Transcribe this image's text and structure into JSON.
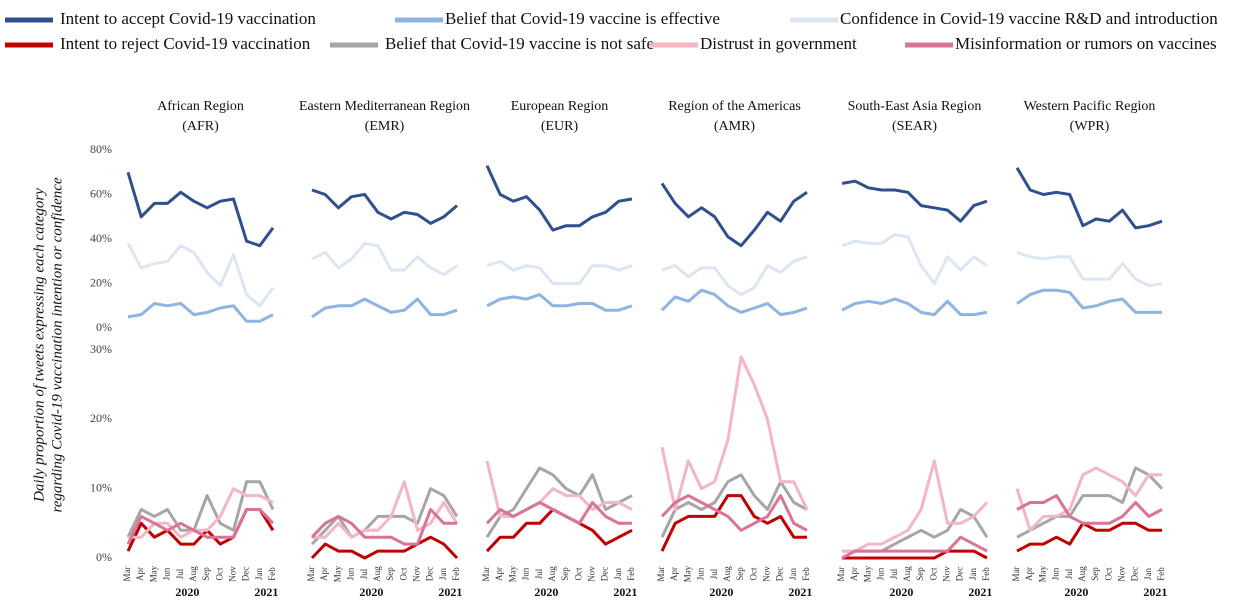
{
  "chart_data": [
    {
      "type": "line",
      "title": "African Region",
      "subtitle": "(AFR)",
      "ylabel": [
        "Daily proportion of tweets expressing each category",
        "regarding Covid-19 vaccination intention or confidence"
      ],
      "ylim": [
        0,
        80
      ],
      "yticks": [
        {
          "value": 0,
          "label": "0%"
        },
        {
          "value": 20,
          "label": "20%"
        },
        {
          "value": 40,
          "label": "40%"
        },
        {
          "value": 60,
          "label": "60%"
        },
        {
          "value": 80,
          "label": "80%"
        }
      ],
      "series": [
        {
          "name": "Intent to accept Covid-19 vaccination",
          "color": "#2f4f8f",
          "values": [
            70,
            50,
            56,
            56,
            61,
            57,
            54,
            57,
            58,
            39,
            37,
            45
          ]
        },
        {
          "name": "Belief that Covid-19 vaccine is effective",
          "color": "#8db4e2",
          "values": [
            5,
            6,
            11,
            10,
            11,
            6,
            7,
            9,
            10,
            3,
            3,
            6
          ]
        },
        {
          "name": "Confidence in Covid-19 vaccine R&D and introduction",
          "color": "#dce6f2",
          "values": [
            38,
            27,
            29,
            30,
            37,
            34,
            25,
            19,
            33,
            15,
            10,
            18
          ]
        }
      ]
    },
    {
      "type": "line",
      "ylim": [
        0,
        30
      ],
      "yticks": [
        {
          "value": 0,
          "label": "0%"
        },
        {
          "value": 10,
          "label": "10%"
        },
        {
          "value": 20,
          "label": "20%"
        },
        {
          "value": 30,
          "label": "30%"
        }
      ],
      "categories": [
        "Mar",
        "Apr",
        "May",
        "Jun",
        "Jul",
        "Aug",
        "Sep",
        "Oct",
        "Nov",
        "Dec",
        "Jan",
        "Feb"
      ],
      "x_group_labels": [
        "2020",
        "2021"
      ],
      "series": [
        {
          "name": "Intent to reject Covid-19 vaccination",
          "color": "#c00000",
          "values": [
            1,
            5,
            3,
            4,
            2,
            2,
            4,
            2,
            3,
            7,
            7,
            4
          ]
        },
        {
          "name": "Belief that Covid-19 vaccine is not safe",
          "color": "#a6a6a6",
          "values": [
            3,
            7,
            6,
            7,
            4,
            4,
            9,
            5,
            4,
            11,
            11,
            7
          ]
        },
        {
          "name": "Distrust in government",
          "color": "#f4b6c2",
          "values": [
            3,
            3,
            5,
            5,
            3,
            4,
            4,
            6,
            10,
            9,
            9,
            8
          ]
        },
        {
          "name": "Misinformation or rumors on vaccines",
          "color": "#d9739a",
          "values": [
            2,
            6,
            5,
            4,
            5,
            4,
            3,
            3,
            3,
            7,
            7,
            5
          ]
        }
      ]
    },
    {
      "type": "line",
      "title": "Eastern Mediterranean Region",
      "subtitle": "(EMR)",
      "ylim": [
        0,
        80
      ],
      "series": [
        {
          "name": "Intent to accept Covid-19 vaccination",
          "color": "#2f4f8f",
          "values": [
            62,
            60,
            54,
            59,
            60,
            52,
            49,
            52,
            51,
            47,
            50,
            55
          ]
        },
        {
          "name": "Belief that Covid-19 vaccine is effective",
          "color": "#8db4e2",
          "values": [
            5,
            9,
            10,
            10,
            13,
            10,
            7,
            8,
            13,
            6,
            6,
            8
          ]
        },
        {
          "name": "Confidence in Covid-19 vaccine R&D and introduction",
          "color": "#dce6f2",
          "values": [
            31,
            34,
            27,
            31,
            38,
            37,
            26,
            26,
            32,
            27,
            24,
            28
          ]
        }
      ]
    },
    {
      "type": "line",
      "ylim": [
        0,
        30
      ],
      "categories": [
        "Mar",
        "Apr",
        "May",
        "Jun",
        "Jul",
        "Aug",
        "Sep",
        "Oct",
        "Nov",
        "Dec",
        "Jan",
        "Feb"
      ],
      "x_group_labels": [
        "2020",
        "2021"
      ],
      "series": [
        {
          "name": "Intent to reject Covid-19 vaccination",
          "color": "#c00000",
          "values": [
            0,
            2,
            1,
            1,
            0,
            1,
            1,
            1,
            2,
            3,
            2,
            0
          ]
        },
        {
          "name": "Belief that Covid-19 vaccine is not safe",
          "color": "#a6a6a6",
          "values": [
            2,
            4,
            6,
            3,
            4,
            6,
            6,
            6,
            5,
            10,
            9,
            6
          ]
        },
        {
          "name": "Distrust in government",
          "color": "#f4b6c2",
          "values": [
            3,
            3,
            5,
            3,
            4,
            4,
            6,
            11,
            4,
            5,
            8,
            5
          ]
        },
        {
          "name": "Misinformation or rumors on vaccines",
          "color": "#d9739a",
          "values": [
            3,
            5,
            6,
            5,
            3,
            3,
            3,
            2,
            2,
            7,
            5,
            5
          ]
        }
      ]
    },
    {
      "type": "line",
      "title": "European Region",
      "subtitle": "(EUR)",
      "ylim": [
        0,
        80
      ],
      "series": [
        {
          "name": "Intent to accept Covid-19 vaccination",
          "color": "#2f4f8f",
          "values": [
            73,
            60,
            57,
            59,
            53,
            44,
            46,
            46,
            50,
            52,
            57,
            58
          ]
        },
        {
          "name": "Belief that Covid-19 vaccine is effective",
          "color": "#8db4e2",
          "values": [
            10,
            13,
            14,
            13,
            15,
            10,
            10,
            11,
            11,
            8,
            8,
            10
          ]
        },
        {
          "name": "Confidence in Covid-19 vaccine R&D and introduction",
          "color": "#dce6f2",
          "values": [
            28,
            30,
            26,
            28,
            27,
            20,
            20,
            20,
            28,
            28,
            26,
            28
          ]
        }
      ]
    },
    {
      "type": "line",
      "ylim": [
        0,
        30
      ],
      "categories": [
        "Mar",
        "Apr",
        "May",
        "Jun",
        "Jul",
        "Aug",
        "Sep",
        "Oct",
        "Nov",
        "Dec",
        "Jan",
        "Feb"
      ],
      "x_group_labels": [
        "2020",
        "2021"
      ],
      "series": [
        {
          "name": "Intent to reject Covid-19 vaccination",
          "color": "#c00000",
          "values": [
            1,
            3,
            3,
            5,
            5,
            7,
            6,
            5,
            4,
            2,
            3,
            4
          ]
        },
        {
          "name": "Belief that Covid-19 vaccine is not safe",
          "color": "#a6a6a6",
          "values": [
            3,
            6,
            7,
            10,
            13,
            12,
            10,
            9,
            12,
            7,
            8,
            9
          ]
        },
        {
          "name": "Distrust in government",
          "color": "#f4b6c2",
          "values": [
            14,
            6,
            6,
            7,
            8,
            10,
            9,
            9,
            7,
            8,
            8,
            7
          ]
        },
        {
          "name": "Misinformation or rumors on vaccines",
          "color": "#d9739a",
          "values": [
            5,
            7,
            6,
            7,
            8,
            7,
            6,
            5,
            8,
            6,
            5,
            5
          ]
        }
      ]
    },
    {
      "type": "line",
      "title": "Region of the Americas",
      "subtitle": "(AMR)",
      "ylim": [
        0,
        80
      ],
      "series": [
        {
          "name": "Intent to accept Covid-19 vaccination",
          "color": "#2f4f8f",
          "values": [
            65,
            56,
            50,
            54,
            50,
            41,
            37,
            44,
            52,
            48,
            57,
            61
          ]
        },
        {
          "name": "Belief that Covid-19 vaccine is effective",
          "color": "#8db4e2",
          "values": [
            8,
            14,
            12,
            17,
            15,
            10,
            7,
            9,
            11,
            6,
            7,
            9
          ]
        },
        {
          "name": "Confidence in Covid-19 vaccine R&D and introduction",
          "color": "#dce6f2",
          "values": [
            26,
            28,
            23,
            27,
            27,
            19,
            15,
            18,
            28,
            25,
            30,
            32
          ]
        }
      ]
    },
    {
      "type": "line",
      "ylim": [
        0,
        30
      ],
      "categories": [
        "Mar",
        "Apr",
        "May",
        "Jun",
        "Jul",
        "Aug",
        "Sep",
        "Oct",
        "Nov",
        "Dec",
        "Jan",
        "Feb"
      ],
      "x_group_labels": [
        "2020",
        "2021"
      ],
      "series": [
        {
          "name": "Intent to reject Covid-19 vaccination",
          "color": "#c00000",
          "values": [
            1,
            5,
            6,
            6,
            6,
            9,
            9,
            6,
            5,
            6,
            3,
            3
          ]
        },
        {
          "name": "Belief that Covid-19 vaccine is not safe",
          "color": "#a6a6a6",
          "values": [
            3,
            7,
            8,
            7,
            8,
            11,
            12,
            9,
            7,
            11,
            8,
            7
          ]
        },
        {
          "name": "Distrust in government",
          "color": "#f4b6c2",
          "values": [
            16,
            7,
            14,
            10,
            11,
            17,
            29,
            25,
            20,
            11,
            11,
            7
          ]
        },
        {
          "name": "Misinformation or rumors on vaccines",
          "color": "#d9739a",
          "values": [
            6,
            8,
            9,
            8,
            7,
            6,
            4,
            5,
            6,
            9,
            5,
            4
          ]
        }
      ]
    },
    {
      "type": "line",
      "title": "South-East Asia Region",
      "subtitle": "(SEAR)",
      "ylim": [
        0,
        80
      ],
      "series": [
        {
          "name": "Intent to accept Covid-19 vaccination",
          "color": "#2f4f8f",
          "values": [
            65,
            66,
            63,
            62,
            62,
            61,
            55,
            54,
            53,
            48,
            55,
            57
          ]
        },
        {
          "name": "Belief that Covid-19 vaccine is effective",
          "color": "#8db4e2",
          "values": [
            8,
            11,
            12,
            11,
            13,
            11,
            7,
            6,
            12,
            6,
            6,
            7
          ]
        },
        {
          "name": "Confidence in Covid-19 vaccine R&D and introduction",
          "color": "#dce6f2",
          "values": [
            37,
            39,
            38,
            38,
            42,
            41,
            28,
            20,
            32,
            26,
            32,
            28
          ]
        }
      ]
    },
    {
      "type": "line",
      "ylim": [
        0,
        30
      ],
      "categories": [
        "Mar",
        "Apr",
        "May",
        "Jun",
        "Jul",
        "Aug",
        "Sep",
        "Oct",
        "Nov",
        "Dec",
        "Jan",
        "Feb"
      ],
      "x_group_labels": [
        "2020",
        "2021"
      ],
      "series": [
        {
          "name": "Intent to reject Covid-19 vaccination",
          "color": "#c00000",
          "values": [
            0,
            0,
            0,
            0,
            0,
            0,
            0,
            0,
            1,
            1,
            1,
            0
          ]
        },
        {
          "name": "Belief that Covid-19 vaccine is not safe",
          "color": "#a6a6a6",
          "values": [
            1,
            1,
            1,
            1,
            2,
            3,
            4,
            3,
            4,
            7,
            6,
            3
          ]
        },
        {
          "name": "Distrust in government",
          "color": "#f4b6c2",
          "values": [
            1,
            1,
            2,
            2,
            3,
            4,
            7,
            14,
            5,
            5,
            6,
            8
          ]
        },
        {
          "name": "Misinformation or rumors on vaccines",
          "color": "#d9739a",
          "values": [
            0,
            1,
            1,
            1,
            1,
            1,
            1,
            1,
            1,
            3,
            2,
            1
          ]
        }
      ]
    },
    {
      "type": "line",
      "title": "Western Pacific Region",
      "subtitle": "(WPR)",
      "ylim": [
        0,
        80
      ],
      "series": [
        {
          "name": "Intent to accept Covid-19 vaccination",
          "color": "#2f4f8f",
          "values": [
            72,
            62,
            60,
            61,
            60,
            46,
            49,
            48,
            53,
            45,
            46,
            48
          ]
        },
        {
          "name": "Belief that Covid-19 vaccine is effective",
          "color": "#8db4e2",
          "values": [
            11,
            15,
            17,
            17,
            16,
            9,
            10,
            12,
            13,
            7,
            7,
            7
          ]
        },
        {
          "name": "Confidence in Covid-19 vaccine R&D and introduction",
          "color": "#dce6f2",
          "values": [
            34,
            32,
            31,
            32,
            32,
            22,
            22,
            22,
            29,
            22,
            19,
            20
          ]
        }
      ]
    },
    {
      "type": "line",
      "ylim": [
        0,
        30
      ],
      "categories": [
        "Mar",
        "Apr",
        "May",
        "Jun",
        "Jul",
        "Aug",
        "Sep",
        "Oct",
        "Nov",
        "Dec",
        "Jan",
        "Feb"
      ],
      "x_group_labels": [
        "2020",
        "2021"
      ],
      "series": [
        {
          "name": "Intent to reject Covid-19 vaccination",
          "color": "#c00000",
          "values": [
            1,
            2,
            2,
            3,
            2,
            5,
            4,
            4,
            5,
            5,
            4,
            4
          ]
        },
        {
          "name": "Belief that Covid-19 vaccine is not safe",
          "color": "#a6a6a6",
          "values": [
            3,
            4,
            5,
            6,
            6,
            9,
            9,
            9,
            8,
            13,
            12,
            10
          ]
        },
        {
          "name": "Distrust in government",
          "color": "#f4b6c2",
          "values": [
            10,
            4,
            6,
            6,
            7,
            12,
            13,
            12,
            11,
            9,
            12,
            12
          ]
        },
        {
          "name": "Misinformation or rumors on vaccines",
          "color": "#d9739a",
          "values": [
            7,
            8,
            8,
            9,
            6,
            5,
            5,
            5,
            6,
            8,
            6,
            7
          ]
        }
      ]
    }
  ]
}
